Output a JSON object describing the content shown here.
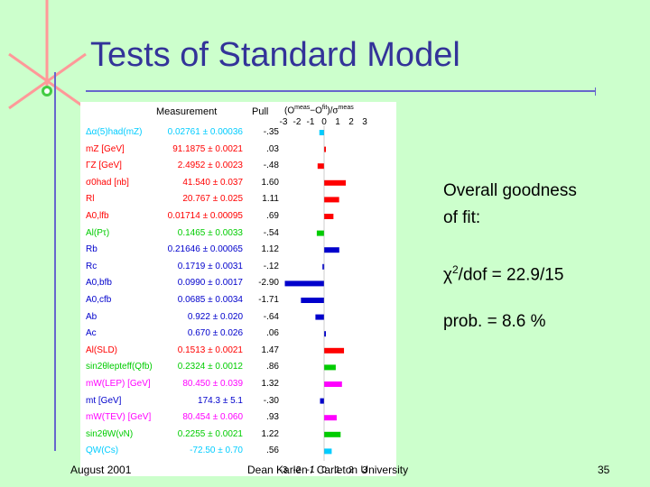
{
  "slide": {
    "title": "Tests of Standard Model",
    "footer_left": "August 2001",
    "footer_center": "Dean Karlen / Carleton University",
    "page_number": "35"
  },
  "side_text": {
    "goodness_line1": "Overall goodness",
    "goodness_line2": "of fit:",
    "chi2": "χ2/dof = 22.9/15",
    "prob": "prob. = 8.6 %"
  },
  "figure": {
    "measurement_header": "Measurement",
    "pull_header": "Pull",
    "formula_header": "(Omeas−Ofit)/σmeas"
  },
  "chart_data": {
    "type": "bar",
    "orientation": "horizontal",
    "xlim": [
      -3,
      3
    ],
    "xticks": [
      -3,
      -2,
      -1,
      0,
      1,
      2,
      3
    ],
    "rows": [
      {
        "label": "Δα(5)had(mZ)",
        "measurement": "0.02761 ± 0.00036",
        "pull": "-.35",
        "value": -0.35,
        "color": "#00ccff"
      },
      {
        "label": "mZ [GeV]",
        "measurement": "91.1875 ± 0.0021",
        "pull": ".03",
        "value": 0.03,
        "color": "#ff0000"
      },
      {
        "label": "ΓZ [GeV]",
        "measurement": "2.4952 ± 0.0023",
        "pull": "-.48",
        "value": -0.48,
        "color": "#ff0000"
      },
      {
        "label": "σ0had [nb]",
        "measurement": "41.540 ± 0.037",
        "pull": "1.60",
        "value": 1.6,
        "color": "#ff0000"
      },
      {
        "label": "Rl",
        "measurement": "20.767 ± 0.025",
        "pull": "1.11",
        "value": 1.11,
        "color": "#ff0000"
      },
      {
        "label": "A0,lfb",
        "measurement": "0.01714 ± 0.00095",
        "pull": ".69",
        "value": 0.69,
        "color": "#ff0000"
      },
      {
        "label": "Al(Pτ)",
        "measurement": "0.1465 ± 0.0033",
        "pull": "-.54",
        "value": -0.54,
        "color": "#00cc00"
      },
      {
        "label": "Rb",
        "measurement": "0.21646 ± 0.00065",
        "pull": "1.12",
        "value": 1.12,
        "color": "#0000cc"
      },
      {
        "label": "Rc",
        "measurement": "0.1719 ± 0.0031",
        "pull": "-.12",
        "value": -0.12,
        "color": "#0000cc"
      },
      {
        "label": "A0,bfb",
        "measurement": "0.0990 ± 0.0017",
        "pull": "-2.90",
        "value": -2.9,
        "color": "#0000cc"
      },
      {
        "label": "A0,cfb",
        "measurement": "0.0685 ± 0.0034",
        "pull": "-1.71",
        "value": -1.71,
        "color": "#0000cc"
      },
      {
        "label": "Ab",
        "measurement": "0.922 ± 0.020",
        "pull": "-.64",
        "value": -0.64,
        "color": "#0000cc"
      },
      {
        "label": "Ac",
        "measurement": "0.670 ± 0.026",
        "pull": ".06",
        "value": 0.06,
        "color": "#0000cc"
      },
      {
        "label": "Al(SLD)",
        "measurement": "0.1513 ± 0.0021",
        "pull": "1.47",
        "value": 1.47,
        "color": "#ff0000"
      },
      {
        "label": "sin2θlepteff(Qfb)",
        "measurement": "0.2324 ± 0.0012",
        "pull": ".86",
        "value": 0.86,
        "color": "#00cc00"
      },
      {
        "label": "mW(LEP) [GeV]",
        "measurement": "80.450 ± 0.039",
        "pull": "1.32",
        "value": 1.32,
        "color": "#ff00ff"
      },
      {
        "label": "mt [GeV]",
        "measurement": "174.3 ± 5.1",
        "pull": "-.30",
        "value": -0.3,
        "color": "#0000cc"
      },
      {
        "label": "mW(TEV) [GeV]",
        "measurement": "80.454 ± 0.060",
        "pull": ".93",
        "value": 0.93,
        "color": "#ff00ff"
      },
      {
        "label": "sin2θW(νN)",
        "measurement": "0.2255 ± 0.0021",
        "pull": "1.22",
        "value": 1.22,
        "color": "#00cc00"
      },
      {
        "label": "QW(Cs)",
        "measurement": "-72.50 ± 0.70",
        "pull": ".56",
        "value": 0.56,
        "color": "#00ccff"
      }
    ]
  }
}
